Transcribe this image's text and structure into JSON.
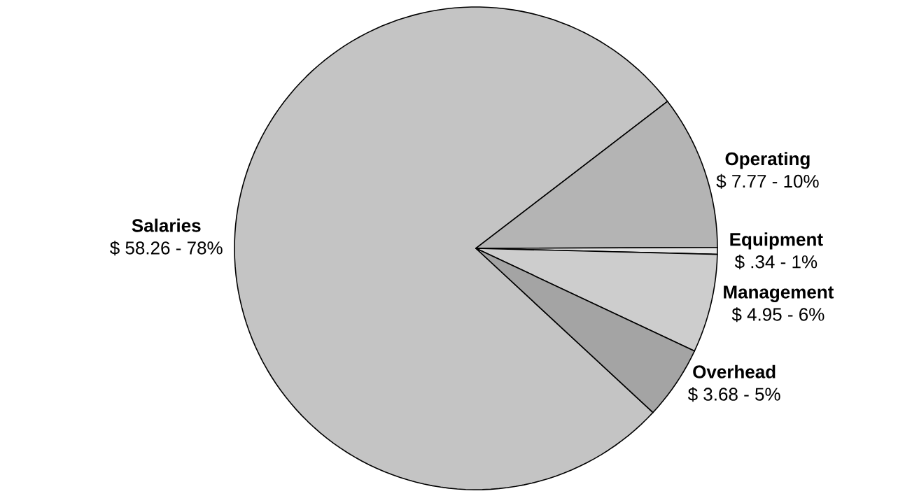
{
  "chart_data": {
    "type": "pie",
    "categories": [
      "Salaries",
      "Operating",
      "Equipment",
      "Management",
      "Overhead"
    ],
    "values": [
      58.26,
      7.77,
      0.34,
      4.95,
      3.68
    ],
    "value_labels": [
      "$ 58.26  -  78%",
      "$ 7.77  -  10%",
      "$ .34  -  1%",
      "$ 4.95  -  6%",
      "$ 3.68  -  5%"
    ],
    "colors": [
      "#c4c4c4",
      "#b4b4b4",
      "#e4e4e4",
      "#cdcdcd",
      "#a4a4a4"
    ]
  }
}
